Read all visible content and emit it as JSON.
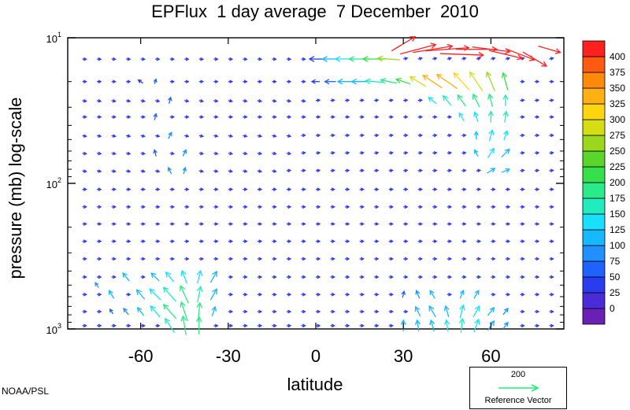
{
  "title": "EPFlux  1 day average  7 December  2010",
  "credit": "NOAA/PSL",
  "reference_vector": {
    "magnitude": "200",
    "label": "Reference Vector",
    "color": "#22ee77"
  },
  "colors": {
    "background": "#ffffff",
    "frame": "#000000",
    "colorbar": [
      "#6a1fb5",
      "#4b2bd8",
      "#2a3cf0",
      "#1f62ff",
      "#2190ff",
      "#16b8ff",
      "#1ae0ff",
      "#20ecc0",
      "#2bea8a",
      "#36e04a",
      "#5ad52c",
      "#9bd81c",
      "#d6dd12",
      "#ffd512",
      "#ffb012",
      "#ff8a0a",
      "#ff5a12",
      "#ff2020"
    ]
  },
  "chart_data": {
    "type": "vector",
    "title": "EPFlux  1 day average  7 December  2010",
    "xlabel": "latitude",
    "ylabel": "pressure (mb)  log-scale",
    "x_ticks": [
      "-60",
      "-30",
      "0",
      "30",
      "60"
    ],
    "x_tick_values": [
      -60,
      -30,
      0,
      30,
      60
    ],
    "xlim": [
      -85,
      85
    ],
    "y_scale": "log",
    "y_ticks": [
      "10",
      "10",
      "10"
    ],
    "y_tick_exponents": [
      "1",
      "2",
      "3"
    ],
    "y_tick_values": [
      10,
      100,
      1000
    ],
    "ylim": [
      1000,
      10
    ],
    "colorbar_labels": [
      "400",
      "375",
      "350",
      "325",
      "300",
      "275",
      "250",
      "225",
      "200",
      "175",
      "150",
      "125",
      "100",
      "75",
      "50",
      "25",
      "0"
    ],
    "reference_magnitude": 200,
    "lats": [
      -80,
      -75,
      -70,
      -65,
      -60,
      -55,
      -50,
      -45,
      -40,
      -35,
      -30,
      -25,
      -20,
      -15,
      -10,
      -5,
      0,
      5,
      10,
      15,
      20,
      25,
      30,
      35,
      40,
      45,
      50,
      55,
      60,
      65,
      70,
      75,
      80
    ],
    "pressures": [
      14,
      20,
      27,
      35,
      47,
      62,
      82,
      110,
      145,
      190,
      250,
      330,
      440,
      580,
      760,
      950
    ],
    "vectors": [
      {
        "lat": 30,
        "p": 11,
        "u": 30,
        "v": 18,
        "mag": 420
      },
      {
        "lat": 35,
        "p": 12,
        "u": 45,
        "v": 12,
        "mag": 420
      },
      {
        "lat": 40,
        "p": 12,
        "u": 50,
        "v": 8,
        "mag": 420
      },
      {
        "lat": 45,
        "p": 12,
        "u": 55,
        "v": 4,
        "mag": 420
      },
      {
        "lat": 50,
        "p": 13,
        "u": 55,
        "v": -2,
        "mag": 420
      },
      {
        "lat": 55,
        "p": 12,
        "u": 52,
        "v": 0,
        "mag": 410
      },
      {
        "lat": 60,
        "p": 12,
        "u": 48,
        "v": -6,
        "mag": 410
      },
      {
        "lat": 65,
        "p": 13,
        "u": 42,
        "v": -10,
        "mag": 400
      },
      {
        "lat": 70,
        "p": 13,
        "u": 36,
        "v": -14,
        "mag": 400
      },
      {
        "lat": 75,
        "p": 14,
        "u": 30,
        "v": -18,
        "mag": 400
      },
      {
        "lat": 80,
        "p": 12,
        "u": 28,
        "v": -8,
        "mag": 400
      },
      {
        "lat": 0,
        "p": 14,
        "u": -16,
        "v": 0,
        "mag": 60
      },
      {
        "lat": 5,
        "p": 14,
        "u": -20,
        "v": 0,
        "mag": 120
      },
      {
        "lat": 10,
        "p": 14,
        "u": -24,
        "v": 0,
        "mag": 160
      },
      {
        "lat": 15,
        "p": 14,
        "u": -26,
        "v": 0,
        "mag": 200
      },
      {
        "lat": 20,
        "p": 14,
        "u": -28,
        "v": 0,
        "mag": 230
      },
      {
        "lat": 25,
        "p": 14,
        "u": -28,
        "v": 2,
        "mag": 260
      },
      {
        "lat": 0,
        "p": 20,
        "u": -10,
        "v": 0,
        "mag": 60
      },
      {
        "lat": 5,
        "p": 20,
        "u": -14,
        "v": 0,
        "mag": 90
      },
      {
        "lat": 10,
        "p": 20,
        "u": -18,
        "v": 0,
        "mag": 120
      },
      {
        "lat": 15,
        "p": 20,
        "u": -20,
        "v": 0,
        "mag": 140
      },
      {
        "lat": 20,
        "p": 20,
        "u": -22,
        "v": 2,
        "mag": 170
      },
      {
        "lat": 25,
        "p": 20,
        "u": -20,
        "v": 4,
        "mag": 200
      },
      {
        "lat": 30,
        "p": 20,
        "u": -18,
        "v": 6,
        "mag": 230
      },
      {
        "lat": 35,
        "p": 20,
        "u": -20,
        "v": 12,
        "mag": 300
      },
      {
        "lat": 40,
        "p": 20,
        "u": -24,
        "v": 16,
        "mag": 330
      },
      {
        "lat": 45,
        "p": 20,
        "u": -26,
        "v": 18,
        "mag": 340
      },
      {
        "lat": 50,
        "p": 20,
        "u": -20,
        "v": 22,
        "mag": 320
      },
      {
        "lat": 55,
        "p": 20,
        "u": -16,
        "v": 24,
        "mag": 300
      },
      {
        "lat": 60,
        "p": 20,
        "u": -10,
        "v": 24,
        "mag": 260
      },
      {
        "lat": 65,
        "p": 20,
        "u": -6,
        "v": 22,
        "mag": 220
      },
      {
        "lat": 40,
        "p": 27,
        "u": -10,
        "v": 8,
        "mag": 150
      },
      {
        "lat": 45,
        "p": 27,
        "u": -10,
        "v": 12,
        "mag": 170
      },
      {
        "lat": 50,
        "p": 27,
        "u": -10,
        "v": 14,
        "mag": 190
      },
      {
        "lat": 55,
        "p": 27,
        "u": -8,
        "v": 16,
        "mag": 200
      },
      {
        "lat": 60,
        "p": 27,
        "u": -4,
        "v": 16,
        "mag": 190
      },
      {
        "lat": 65,
        "p": 27,
        "u": 0,
        "v": 14,
        "mag": 170
      },
      {
        "lat": 50,
        "p": 35,
        "u": -6,
        "v": 10,
        "mag": 150
      },
      {
        "lat": 55,
        "p": 35,
        "u": -4,
        "v": 12,
        "mag": 160
      },
      {
        "lat": 60,
        "p": 35,
        "u": 0,
        "v": 14,
        "mag": 170
      },
      {
        "lat": 65,
        "p": 35,
        "u": 2,
        "v": 14,
        "mag": 165
      },
      {
        "lat": 55,
        "p": 47,
        "u": 0,
        "v": 10,
        "mag": 140
      },
      {
        "lat": 60,
        "p": 47,
        "u": 4,
        "v": 14,
        "mag": 160
      },
      {
        "lat": 65,
        "p": 47,
        "u": 4,
        "v": 12,
        "mag": 150
      },
      {
        "lat": 55,
        "p": 62,
        "u": -4,
        "v": 8,
        "mag": 130
      },
      {
        "lat": 60,
        "p": 62,
        "u": 8,
        "v": 12,
        "mag": 150
      },
      {
        "lat": 65,
        "p": 62,
        "u": 10,
        "v": 10,
        "mag": 140
      },
      {
        "lat": 60,
        "p": 82,
        "u": 10,
        "v": 6,
        "mag": 140
      },
      {
        "lat": 65,
        "p": 82,
        "u": 10,
        "v": 4,
        "mag": 120
      },
      {
        "lat": -60,
        "p": 20,
        "u": -6,
        "v": 4,
        "mag": 70
      },
      {
        "lat": -55,
        "p": 20,
        "u": 2,
        "v": 6,
        "mag": 80
      },
      {
        "lat": -50,
        "p": 27,
        "u": 2,
        "v": 8,
        "mag": 90
      },
      {
        "lat": -55,
        "p": 35,
        "u": 2,
        "v": 8,
        "mag": 90
      },
      {
        "lat": -50,
        "p": 47,
        "u": 4,
        "v": 8,
        "mag": 100
      },
      {
        "lat": -45,
        "p": 62,
        "u": 4,
        "v": 8,
        "mag": 100
      },
      {
        "lat": -55,
        "p": 62,
        "u": -2,
        "v": 8,
        "mag": 90
      },
      {
        "lat": -50,
        "p": 82,
        "u": -4,
        "v": 8,
        "mag": 100
      },
      {
        "lat": -45,
        "p": 82,
        "u": 2,
        "v": 8,
        "mag": 100
      },
      {
        "lat": -75,
        "p": 500,
        "u": -4,
        "v": 6,
        "mag": 100
      },
      {
        "lat": -70,
        "p": 580,
        "u": -6,
        "v": 10,
        "mag": 120
      },
      {
        "lat": -65,
        "p": 440,
        "u": -8,
        "v": 10,
        "mag": 120
      },
      {
        "lat": -60,
        "p": 580,
        "u": -10,
        "v": 12,
        "mag": 140
      },
      {
        "lat": -60,
        "p": 760,
        "u": -8,
        "v": 10,
        "mag": 130
      },
      {
        "lat": -55,
        "p": 440,
        "u": -10,
        "v": 10,
        "mag": 140
      },
      {
        "lat": -55,
        "p": 580,
        "u": -14,
        "v": 14,
        "mag": 160
      },
      {
        "lat": -55,
        "p": 760,
        "u": -12,
        "v": 14,
        "mag": 160
      },
      {
        "lat": -50,
        "p": 440,
        "u": -10,
        "v": 12,
        "mag": 150
      },
      {
        "lat": -50,
        "p": 580,
        "u": -16,
        "v": 18,
        "mag": 180
      },
      {
        "lat": -50,
        "p": 760,
        "u": -16,
        "v": 18,
        "mag": 190
      },
      {
        "lat": -50,
        "p": 950,
        "u": -12,
        "v": 18,
        "mag": 180
      },
      {
        "lat": -45,
        "p": 440,
        "u": -6,
        "v": 16,
        "mag": 160
      },
      {
        "lat": -45,
        "p": 580,
        "u": -10,
        "v": 22,
        "mag": 190
      },
      {
        "lat": -45,
        "p": 760,
        "u": -8,
        "v": 24,
        "mag": 200
      },
      {
        "lat": -45,
        "p": 950,
        "u": -4,
        "v": 24,
        "mag": 200
      },
      {
        "lat": -40,
        "p": 440,
        "u": 4,
        "v": 16,
        "mag": 160
      },
      {
        "lat": -40,
        "p": 580,
        "u": 4,
        "v": 20,
        "mag": 180
      },
      {
        "lat": -40,
        "p": 760,
        "u": 2,
        "v": 22,
        "mag": 190
      },
      {
        "lat": -40,
        "p": 950,
        "u": 0,
        "v": 22,
        "mag": 190
      },
      {
        "lat": -35,
        "p": 440,
        "u": 8,
        "v": 14,
        "mag": 140
      },
      {
        "lat": -35,
        "p": 580,
        "u": 8,
        "v": 14,
        "mag": 140
      },
      {
        "lat": -35,
        "p": 760,
        "u": 4,
        "v": 12,
        "mag": 120
      },
      {
        "lat": -65,
        "p": 760,
        "u": -6,
        "v": 8,
        "mag": 110
      },
      {
        "lat": -70,
        "p": 760,
        "u": -4,
        "v": 6,
        "mag": 90
      },
      {
        "lat": 30,
        "p": 580,
        "u": 2,
        "v": 8,
        "mag": 90
      },
      {
        "lat": 30,
        "p": 950,
        "u": 0,
        "v": 14,
        "mag": 140
      },
      {
        "lat": 35,
        "p": 580,
        "u": -4,
        "v": 10,
        "mag": 110
      },
      {
        "lat": 35,
        "p": 760,
        "u": -6,
        "v": 12,
        "mag": 130
      },
      {
        "lat": 35,
        "p": 950,
        "u": -2,
        "v": 14,
        "mag": 140
      },
      {
        "lat": 40,
        "p": 580,
        "u": -6,
        "v": 10,
        "mag": 120
      },
      {
        "lat": 40,
        "p": 760,
        "u": -8,
        "v": 14,
        "mag": 140
      },
      {
        "lat": 40,
        "p": 950,
        "u": -4,
        "v": 14,
        "mag": 140
      },
      {
        "lat": 45,
        "p": 760,
        "u": -4,
        "v": 14,
        "mag": 140
      },
      {
        "lat": 45,
        "p": 950,
        "u": -2,
        "v": 14,
        "mag": 150
      },
      {
        "lat": 50,
        "p": 580,
        "u": 4,
        "v": 10,
        "mag": 120
      },
      {
        "lat": 50,
        "p": 760,
        "u": 4,
        "v": 16,
        "mag": 160
      },
      {
        "lat": 50,
        "p": 950,
        "u": 2,
        "v": 18,
        "mag": 170
      },
      {
        "lat": 55,
        "p": 580,
        "u": 6,
        "v": 10,
        "mag": 120
      },
      {
        "lat": 55,
        "p": 760,
        "u": 8,
        "v": 14,
        "mag": 150
      },
      {
        "lat": 55,
        "p": 950,
        "u": 6,
        "v": 16,
        "mag": 160
      },
      {
        "lat": 60,
        "p": 760,
        "u": 8,
        "v": 10,
        "mag": 120
      },
      {
        "lat": 60,
        "p": 950,
        "u": 8,
        "v": 12,
        "mag": 130
      },
      {
        "lat": 65,
        "p": 760,
        "u": 6,
        "v": 8,
        "mag": 100
      },
      {
        "lat": 65,
        "p": 950,
        "u": 6,
        "v": 8,
        "mag": 100
      }
    ]
  }
}
